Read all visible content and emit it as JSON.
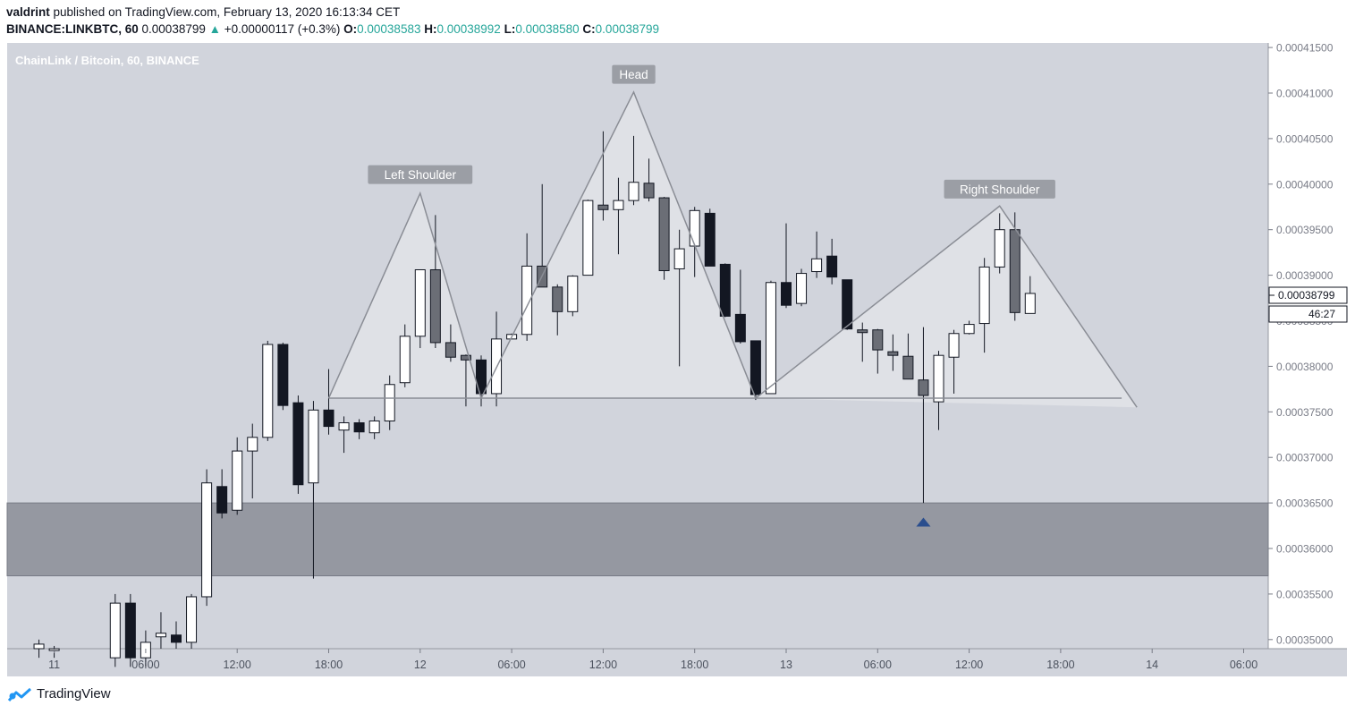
{
  "header": {
    "author": "valdrint",
    "published_text": " published on TradingView.com, February 13, 2020 16:13:34 CET",
    "symbol": "BINANCE:LINKBTC, 60",
    "last_price": "0.00038799",
    "change_arrow": "▲",
    "change": "+0.00000117 (+0.3%)",
    "o_label": "O:",
    "o_value": "0.00038583",
    "h_label": "H:",
    "h_value": "0.00038992",
    "l_label": "L:",
    "l_value": "0.00038580",
    "c_label": "C:",
    "c_value": "0.00038799"
  },
  "footer": {
    "brand": "TradingView",
    "logo_icon": "tradingview-logo-icon"
  },
  "colors": {
    "bull_body": "#ffffff",
    "bear_body": "#131722",
    "muted_body": "#6b6e76",
    "pane_bg": "#d1d4dc",
    "zone": "#9598a1",
    "triangle_fill": "#e2e3e8",
    "pattern_line": "#8a8d95",
    "pattern_label_bg": "#9b9ea5",
    "marker": "#2a4e8e"
  },
  "chart_data": {
    "type": "candlestick",
    "title": "ChainLink / Bitcoin, 60, BINANCE",
    "y_ticks": [
      "0.00035000",
      "0.00035500",
      "0.00036000",
      "0.00036500",
      "0.00037000",
      "0.00037500",
      "0.00038000",
      "0.00038500",
      "0.00039000",
      "0.00039500",
      "0.00040000",
      "0.00040500",
      "0.00041000",
      "0.00041500"
    ],
    "x_ticks": [
      {
        "label": "11",
        "t": -4
      },
      {
        "label": "06:00",
        "t": 2
      },
      {
        "label": "12:00",
        "t": 8
      },
      {
        "label": "18:00",
        "t": 14
      },
      {
        "label": "12",
        "t": 20
      },
      {
        "label": "06:00",
        "t": 26
      },
      {
        "label": "12:00",
        "t": 32
      },
      {
        "label": "18:00",
        "t": 38
      },
      {
        "label": "13",
        "t": 44
      },
      {
        "label": "06:00",
        "t": 50
      },
      {
        "label": "12:00",
        "t": 56
      },
      {
        "label": "18:00",
        "t": 62
      },
      {
        "label": "14",
        "t": 68
      },
      {
        "label": "06:00",
        "t": 74
      }
    ],
    "time_unit_hours": 1,
    "candles": [
      {
        "t": -5,
        "o": 0.0003495,
        "h": 0.00035,
        "l": 0.000348,
        "c": 0.000349,
        "s": "bull"
      },
      {
        "t": -4,
        "o": 0.000349,
        "h": 0.0003493,
        "l": 0.000348,
        "c": 0.0003488,
        "s": "bull"
      },
      {
        "t": 0,
        "o": 0.000348,
        "h": 0.000355,
        "l": 0.000347,
        "c": 0.000354,
        "s": "bull"
      },
      {
        "t": 1,
        "o": 0.000354,
        "h": 0.000355,
        "l": 0.000347,
        "c": 0.000348,
        "s": "bear"
      },
      {
        "t": 2,
        "o": 0.000348,
        "h": 0.000351,
        "l": 0.000347,
        "c": 0.0003497,
        "s": "bull"
      },
      {
        "t": 3,
        "o": 0.0003503,
        "h": 0.000353,
        "l": 0.000349,
        "c": 0.0003507,
        "s": "bull"
      },
      {
        "t": 4,
        "o": 0.0003505,
        "h": 0.000352,
        "l": 0.000349,
        "c": 0.0003497,
        "s": "bear"
      },
      {
        "t": 5,
        "o": 0.0003497,
        "h": 0.000355,
        "l": 0.000349,
        "c": 0.0003547,
        "s": "bull"
      },
      {
        "t": 6,
        "o": 0.0003547,
        "h": 0.0003687,
        "l": 0.0003537,
        "c": 0.0003672,
        "s": "bull"
      },
      {
        "t": 7,
        "o": 0.0003668,
        "h": 0.0003687,
        "l": 0.0003633,
        "c": 0.0003639,
        "s": "bear"
      },
      {
        "t": 8,
        "o": 0.0003642,
        "h": 0.0003722,
        "l": 0.0003637,
        "c": 0.0003707,
        "s": "bull"
      },
      {
        "t": 9,
        "o": 0.0003707,
        "h": 0.0003737,
        "l": 0.0003655,
        "c": 0.0003722,
        "s": "bull"
      },
      {
        "t": 10,
        "o": 0.0003722,
        "h": 0.0003828,
        "l": 0.0003718,
        "c": 0.0003824,
        "s": "bull"
      },
      {
        "t": 11,
        "o": 0.0003824,
        "h": 0.0003826,
        "l": 0.0003752,
        "c": 0.0003757,
        "s": "bear"
      },
      {
        "t": 12,
        "o": 0.000376,
        "h": 0.0003768,
        "l": 0.000366,
        "c": 0.000367,
        "s": "bear"
      },
      {
        "t": 13,
        "o": 0.0003672,
        "h": 0.0003762,
        "l": 0.0003567,
        "c": 0.0003752,
        "s": "bull"
      },
      {
        "t": 14,
        "o": 0.0003752,
        "h": 0.0003797,
        "l": 0.0003725,
        "c": 0.0003734,
        "s": "bear"
      },
      {
        "t": 15,
        "o": 0.000373,
        "h": 0.0003745,
        "l": 0.0003705,
        "c": 0.0003738,
        "s": "bull"
      },
      {
        "t": 16,
        "o": 0.0003738,
        "h": 0.0003742,
        "l": 0.000372,
        "c": 0.0003728,
        "s": "bear"
      },
      {
        "t": 17,
        "o": 0.0003727,
        "h": 0.0003745,
        "l": 0.000372,
        "c": 0.000374,
        "s": "bull"
      },
      {
        "t": 18,
        "o": 0.000374,
        "h": 0.000379,
        "l": 0.000373,
        "c": 0.000378,
        "s": "bull"
      },
      {
        "t": 19,
        "o": 0.0003782,
        "h": 0.0003846,
        "l": 0.0003777,
        "c": 0.0003833,
        "s": "bull"
      },
      {
        "t": 20,
        "o": 0.0003833,
        "h": 0.0003906,
        "l": 0.000382,
        "c": 0.0003906,
        "s": "bull"
      },
      {
        "t": 21,
        "o": 0.0003906,
        "h": 0.0003966,
        "l": 0.000382,
        "c": 0.0003826,
        "s": "muted"
      },
      {
        "t": 22,
        "o": 0.0003826,
        "h": 0.0003846,
        "l": 0.0003805,
        "c": 0.000381,
        "s": "muted"
      },
      {
        "t": 23,
        "o": 0.0003812,
        "h": 0.0003813,
        "l": 0.0003756,
        "c": 0.0003807,
        "s": "muted"
      },
      {
        "t": 24,
        "o": 0.0003807,
        "h": 0.0003812,
        "l": 0.0003756,
        "c": 0.000377,
        "s": "bear"
      },
      {
        "t": 25,
        "o": 0.000377,
        "h": 0.000386,
        "l": 0.0003756,
        "c": 0.000383,
        "s": "bull"
      },
      {
        "t": 26,
        "o": 0.000383,
        "h": 0.0003836,
        "l": 0.000383,
        "c": 0.0003835,
        "s": "bull"
      },
      {
        "t": 27,
        "o": 0.0003835,
        "h": 0.0003946,
        "l": 0.0003828,
        "c": 0.000391,
        "s": "bull"
      },
      {
        "t": 28,
        "o": 0.000391,
        "h": 0.0004,
        "l": 0.000389,
        "c": 0.0003887,
        "s": "muted"
      },
      {
        "t": 29,
        "o": 0.0003887,
        "h": 0.000389,
        "l": 0.0003834,
        "c": 0.000386,
        "s": "muted"
      },
      {
        "t": 30,
        "o": 0.000386,
        "h": 0.00039,
        "l": 0.0003855,
        "c": 0.0003899,
        "s": "bull"
      },
      {
        "t": 31,
        "o": 0.00039,
        "h": 0.0003983,
        "l": 0.00039,
        "c": 0.0003982,
        "s": "bull"
      },
      {
        "t": 32,
        "o": 0.0003977,
        "h": 0.0004058,
        "l": 0.000396,
        "c": 0.0003972,
        "s": "muted"
      },
      {
        "t": 33,
        "o": 0.0003972,
        "h": 0.0004007,
        "l": 0.0003923,
        "c": 0.0003982,
        "s": "bull"
      },
      {
        "t": 34,
        "o": 0.0003982,
        "h": 0.0004053,
        "l": 0.0003977,
        "c": 0.0004002,
        "s": "bull"
      },
      {
        "t": 35,
        "o": 0.0004001,
        "h": 0.0004028,
        "l": 0.0003981,
        "c": 0.0003985,
        "s": "muted"
      },
      {
        "t": 36,
        "o": 0.0003985,
        "h": 0.0003986,
        "l": 0.0003895,
        "c": 0.0003905,
        "s": "muted"
      },
      {
        "t": 37,
        "o": 0.0003907,
        "h": 0.000395,
        "l": 0.00038,
        "c": 0.0003929,
        "s": "bull"
      },
      {
        "t": 38,
        "o": 0.0003932,
        "h": 0.0003975,
        "l": 0.0003898,
        "c": 0.0003971,
        "s": "bull"
      },
      {
        "t": 39,
        "o": 0.0003968,
        "h": 0.0003973,
        "l": 0.000391,
        "c": 0.000391,
        "s": "bear"
      },
      {
        "t": 40,
        "o": 0.0003912,
        "h": 0.0003913,
        "l": 0.0003854,
        "c": 0.0003855,
        "s": "bear"
      },
      {
        "t": 41,
        "o": 0.0003857,
        "h": 0.0003906,
        "l": 0.0003825,
        "c": 0.0003827,
        "s": "bear"
      },
      {
        "t": 42,
        "o": 0.0003828,
        "h": 0.0003828,
        "l": 0.0003763,
        "c": 0.0003769,
        "s": "bear"
      },
      {
        "t": 43,
        "o": 0.000377,
        "h": 0.0003894,
        "l": 0.000377,
        "c": 0.0003892,
        "s": "bull"
      },
      {
        "t": 44,
        "o": 0.0003892,
        "h": 0.0003957,
        "l": 0.0003864,
        "c": 0.0003867,
        "s": "bear"
      },
      {
        "t": 45,
        "o": 0.0003869,
        "h": 0.0003907,
        "l": 0.0003866,
        "c": 0.0003902,
        "s": "bull"
      },
      {
        "t": 46,
        "o": 0.0003904,
        "h": 0.0003948,
        "l": 0.0003897,
        "c": 0.0003918,
        "s": "bull"
      },
      {
        "t": 47,
        "o": 0.0003921,
        "h": 0.000394,
        "l": 0.000389,
        "c": 0.0003898,
        "s": "bear"
      },
      {
        "t": 48,
        "o": 0.0003895,
        "h": 0.0003895,
        "l": 0.000384,
        "c": 0.0003841,
        "s": "bear"
      },
      {
        "t": 49,
        "o": 0.000384,
        "h": 0.0003848,
        "l": 0.0003805,
        "c": 0.0003837,
        "s": "muted"
      },
      {
        "t": 50,
        "o": 0.000384,
        "h": 0.0003841,
        "l": 0.0003792,
        "c": 0.0003818,
        "s": "muted"
      },
      {
        "t": 51,
        "o": 0.0003816,
        "h": 0.0003835,
        "l": 0.0003795,
        "c": 0.0003812,
        "s": "muted"
      },
      {
        "t": 52,
        "o": 0.0003811,
        "h": 0.0003836,
        "l": 0.000379,
        "c": 0.0003786,
        "s": "muted"
      },
      {
        "t": 53,
        "o": 0.0003785,
        "h": 0.0003843,
        "l": 0.000365,
        "c": 0.0003768,
        "s": "muted"
      },
      {
        "t": 54,
        "o": 0.0003761,
        "h": 0.0003817,
        "l": 0.000373,
        "c": 0.0003812,
        "s": "bull"
      },
      {
        "t": 55,
        "o": 0.000381,
        "h": 0.000384,
        "l": 0.000377,
        "c": 0.0003836,
        "s": "bull"
      },
      {
        "t": 56,
        "o": 0.0003836,
        "h": 0.000385,
        "l": 0.0003835,
        "c": 0.0003846,
        "s": "bull"
      },
      {
        "t": 57,
        "o": 0.0003847,
        "h": 0.0003919,
        "l": 0.0003815,
        "c": 0.0003909,
        "s": "bull"
      },
      {
        "t": 58,
        "o": 0.0003909,
        "h": 0.0003968,
        "l": 0.0003902,
        "c": 0.000395,
        "s": "bull"
      },
      {
        "t": 59,
        "o": 0.000395,
        "h": 0.0003969,
        "l": 0.000385,
        "c": 0.0003859,
        "s": "muted"
      },
      {
        "t": 60,
        "o": 0.0003858,
        "h": 0.0003899,
        "l": 0.0003858,
        "c": 0.000388,
        "s": "bull"
      }
    ],
    "support_zone": {
      "from": 0.000357,
      "to": 0.000365
    },
    "pattern_lines": [
      [
        [
          14,
          0.0003765
        ],
        [
          20,
          0.000399
        ],
        [
          24,
          0.0003765
        ]
      ],
      [
        [
          24,
          0.0003765
        ],
        [
          34,
          0.0004101
        ],
        [
          42,
          0.0003765
        ]
      ],
      [
        [
          42,
          0.0003765
        ],
        [
          58,
          0.0003976
        ],
        [
          67,
          0.0003755
        ]
      ],
      [
        [
          14,
          0.0003765
        ],
        [
          66,
          0.0003765
        ]
      ]
    ],
    "annotations": [
      {
        "text": "Left Shoulder",
        "t": 20,
        "price": 0.000401
      },
      {
        "text": "Head",
        "t": 34,
        "price": 0.000412
      },
      {
        "text": "Right Shoulder",
        "t": 58,
        "price": 0.0003994
      }
    ],
    "marker": {
      "t": 53,
      "price": 0.000363
    },
    "price_label": "0.00038799",
    "countdown_label": "46:27",
    "y_range": [
      0.000349,
      0.0004155
    ]
  }
}
